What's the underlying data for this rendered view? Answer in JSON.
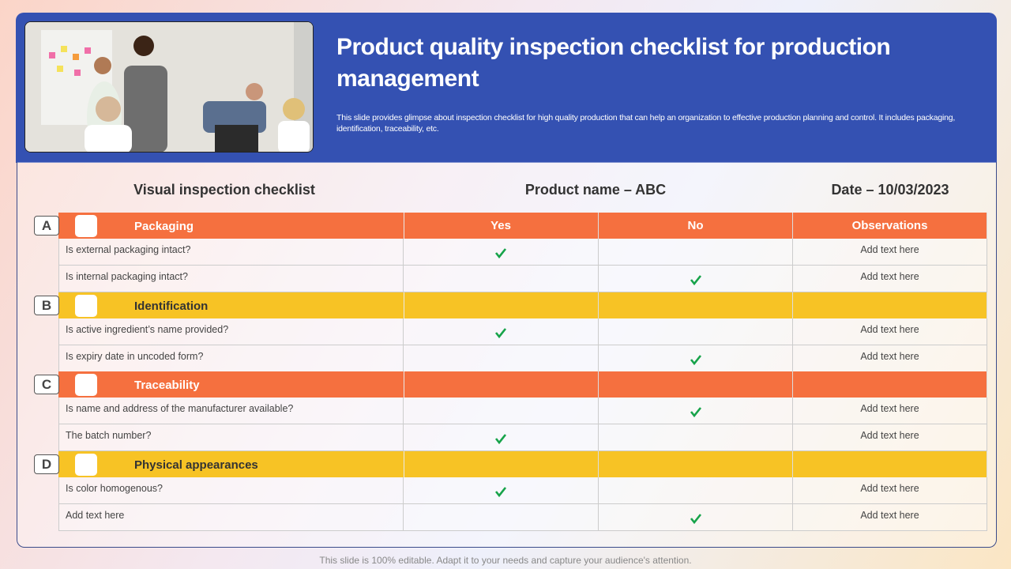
{
  "header": {
    "title": "Product quality inspection checklist for production management",
    "description": "This slide provides glimpse about inspection checklist for high quality production that can help an organization to effective production planning and control. It includes packaging, identification, traceability, etc."
  },
  "info": {
    "checklist": "Visual inspection checklist",
    "product": "Product name – ABC",
    "date": "Date – 10/03/2023"
  },
  "table": {
    "columns": [
      "Yes",
      "No",
      "Observations"
    ],
    "sections": [
      {
        "letter": "A",
        "title": "Packaging",
        "rows": [
          {
            "question": "Is external packaging intact?",
            "yes": true,
            "no": false,
            "observation": "Add text here"
          },
          {
            "question": "Is internal packaging intact?",
            "yes": false,
            "no": true,
            "observation": "Add text here"
          }
        ]
      },
      {
        "letter": "B",
        "title": "Identification",
        "rows": [
          {
            "question": "Is active ingredient’s name provided?",
            "yes": true,
            "no": false,
            "observation": "Add text here"
          },
          {
            "question": "Is expiry date in uncoded form?",
            "yes": false,
            "no": true,
            "observation": "Add text here"
          }
        ]
      },
      {
        "letter": "C",
        "title": "Traceability",
        "rows": [
          {
            "question": "Is name and address of the manufacturer available?",
            "yes": false,
            "no": true,
            "observation": "Add text here"
          },
          {
            "question": "The batch number?",
            "yes": true,
            "no": false,
            "observation": "Add text here"
          }
        ]
      },
      {
        "letter": "D",
        "title": "Physical appearances",
        "rows": [
          {
            "question": "Is color homogenous?",
            "yes": true,
            "no": false,
            "observation": "Add text here"
          },
          {
            "question": "Add text here",
            "yes": false,
            "no": true,
            "observation": "Add text here"
          }
        ]
      }
    ]
  },
  "footer": "This slide is 100% editable. Adapt it to your needs and capture your audience's attention."
}
